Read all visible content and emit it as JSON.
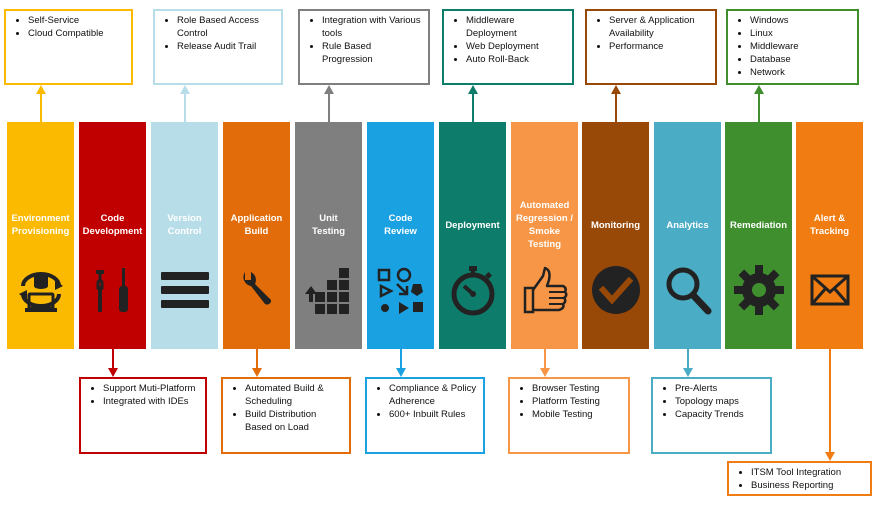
{
  "columns": [
    {
      "title": "Environment\nProvisioning",
      "color": "#fbb900",
      "icon": "provisioning-icon"
    },
    {
      "title": "Code\nDevelopment",
      "color": "#c00000",
      "icon": "tools-icon"
    },
    {
      "title": "Version\nControl",
      "color": "#b7dde8",
      "icon": "menu-bars-icon"
    },
    {
      "title": "Application\nBuild",
      "color": "#e36c0a",
      "icon": "wrench-icon"
    },
    {
      "title": "Unit\nTesting",
      "color": "#7f7f7f",
      "icon": "blocks-icon"
    },
    {
      "title": "Code\nReview",
      "color": "#1aa1e1",
      "icon": "shapes-icon"
    },
    {
      "title": "Deployment",
      "color": "#0e7c6b",
      "icon": "stopwatch-icon"
    },
    {
      "title": "Automated\nRegression /\nSmoke\nTesting",
      "color": "#f79646",
      "icon": "thumbs-up-icon"
    },
    {
      "title": "Monitoring",
      "color": "#984807",
      "icon": "checkmark-icon"
    },
    {
      "title": "Analytics",
      "color": "#4bacc6",
      "icon": "magnifier-icon"
    },
    {
      "title": "Remediation",
      "color": "#3f8f2f",
      "icon": "gear-icon"
    },
    {
      "title": "Alert &\nTracking",
      "color": "#f07c12",
      "icon": "envelope-icon"
    }
  ],
  "top_notes": [
    {
      "col": 0,
      "color": "#fbb900",
      "items": [
        "Self-Service",
        "Cloud Compatible"
      ]
    },
    {
      "col": 2,
      "color": "#b7dde8",
      "items": [
        "Role Based Access Control",
        "Release Audit Trail"
      ]
    },
    {
      "col": 4,
      "color": "#7f7f7f",
      "items": [
        "Integration with Various tools",
        "Rule Based Progression"
      ]
    },
    {
      "col": 6,
      "color": "#0e7c6b",
      "items": [
        "Middleware Deployment",
        "Web Deployment",
        "Auto Roll-Back"
      ]
    },
    {
      "col": 8,
      "color": "#984807",
      "items": [
        "Server & Application Availability",
        "Performance"
      ]
    },
    {
      "col": 10,
      "color": "#3f8f2f",
      "items": [
        "Windows",
        "Linux",
        "Middleware",
        "Database",
        "Network"
      ]
    }
  ],
  "bottom_notes": [
    {
      "col": 1,
      "color": "#c00000",
      "items": [
        "Support Muti-Platform",
        "Integrated with IDEs"
      ]
    },
    {
      "col": 3,
      "color": "#e36c0a",
      "items": [
        "Automated Build & Scheduling",
        "Build Distribution Based on Load"
      ]
    },
    {
      "col": 5,
      "color": "#1aa1e1",
      "items": [
        "Compliance & Policy Adherence",
        "600+ Inbuilt Rules"
      ]
    },
    {
      "col": 7,
      "color": "#f79646",
      "items": [
        "Browser Testing",
        "Platform Testing",
        "Mobile Testing"
      ]
    },
    {
      "col": 9,
      "color": "#4bacc6",
      "items": [
        "Pre-Alerts",
        "Topology maps",
        "Capacity Trends"
      ]
    },
    {
      "col": 11,
      "color": "#f07c12",
      "items": [
        "ITSM Tool Integration",
        "Business Reporting"
      ]
    }
  ]
}
